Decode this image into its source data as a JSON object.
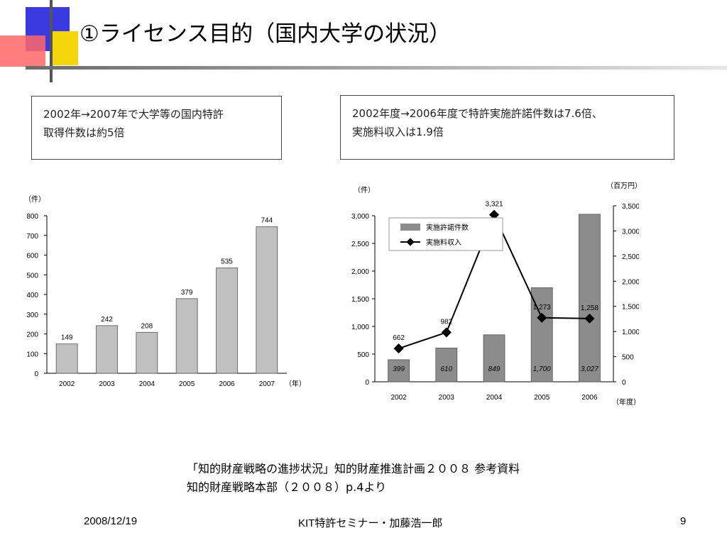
{
  "slide": {
    "title": "①ライセンス目的（国内大学の状況）",
    "box_left": {
      "line1": "2002年→2007年で大学等の国内特許",
      "line2": "取得件数は約5倍"
    },
    "box_right": {
      "line1": "2002年度→2006年度で特許実施許諾件数は7.6倍、",
      "line2": "実施料収入は1.9倍"
    },
    "source_line1": "「知的財産戦略の進捗状況」知的財産推進計画２００８ 参考資料",
    "source_line2": "知的財産戦略本部（２００８）p.4より",
    "footer": {
      "date": "2008/12/19",
      "center": "KIT特許セミナー・加藤浩一郎",
      "page": "9"
    },
    "colors": {
      "bar_left": "#c0c0c0",
      "bar_right": "#8c8c8c",
      "deco_blue": "#3a3ae0",
      "deco_yellow": "#f5d60a",
      "deco_red": "#ff5a5a"
    }
  },
  "chart_data": [
    {
      "type": "bar",
      "unit_label": "（件）",
      "x_unit_label": "（年）",
      "categories": [
        "2002",
        "2003",
        "2004",
        "2005",
        "2006",
        "2007"
      ],
      "values": [
        149,
        242,
        208,
        379,
        535,
        744
      ],
      "data_labels": [
        "149",
        "242",
        "208",
        "379",
        "535",
        "744"
      ],
      "ylim": [
        0,
        800
      ],
      "yticks": [
        "0",
        "100",
        "200",
        "300",
        "400",
        "500",
        "600",
        "700",
        "800"
      ],
      "grid": false
    },
    {
      "type": "bar+line",
      "left_unit_label": "（件）",
      "right_unit_label": "（百万円）",
      "x_unit_label": "（年度）",
      "categories": [
        "2002",
        "2003",
        "2004",
        "2005",
        "2006"
      ],
      "series": [
        {
          "name": "実施許諾件数",
          "type": "bar",
          "axis": "left",
          "values": [
            399,
            610,
            849,
            1700,
            3027
          ],
          "labels": [
            "399",
            "610",
            "849",
            "1,700",
            "3,027"
          ]
        },
        {
          "name": "実施料収入",
          "type": "line",
          "axis": "right",
          "values": [
            662,
            982,
            3321,
            1273,
            1258
          ],
          "labels": [
            "662",
            "982",
            "3,321",
            "1,273",
            "1,258"
          ]
        }
      ],
      "ylim_left": [
        0,
        3000
      ],
      "ylim_right": [
        0,
        3500
      ],
      "yticks_left": [
        "0",
        "500",
        "1,000",
        "1,500",
        "2,000",
        "2,500",
        "3,000"
      ],
      "yticks_right": [
        "0",
        "500",
        "1,000",
        "1,500",
        "2,000",
        "2,500",
        "3,000",
        "3,500"
      ],
      "legend": "top-left",
      "grid": false
    }
  ]
}
